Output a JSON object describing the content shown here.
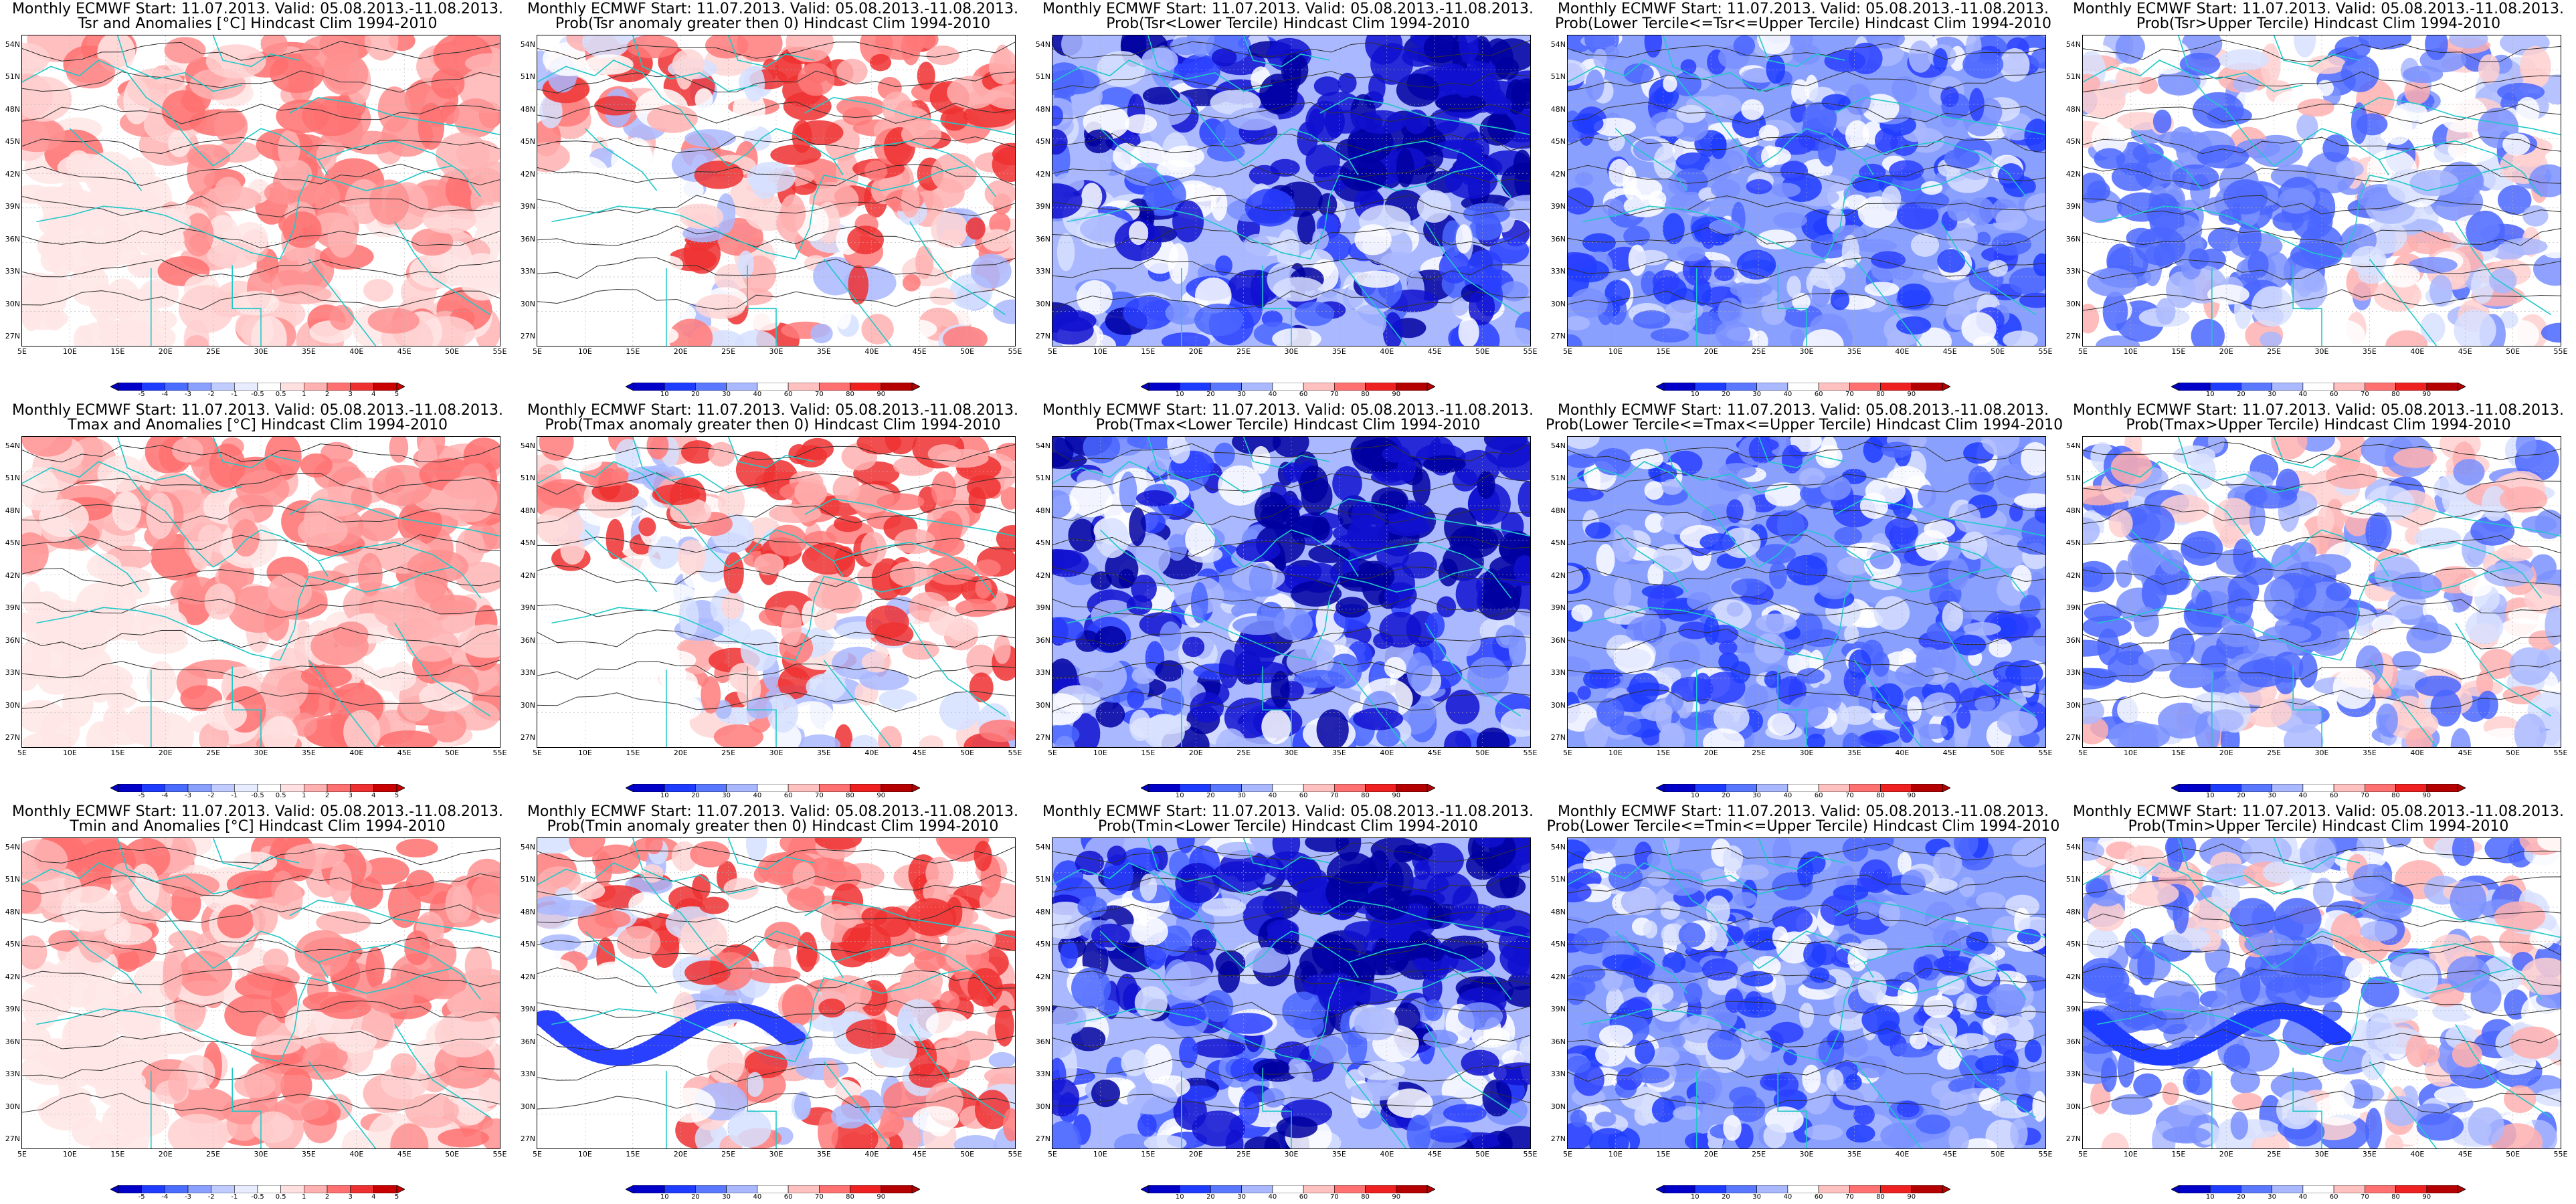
{
  "lat_ticks": [
    "54N",
    "51N",
    "48N",
    "45N",
    "42N",
    "39N",
    "36N",
    "33N",
    "30N",
    "27N"
  ],
  "lon_ticks": [
    "5E",
    "10E",
    "15E",
    "20E",
    "25E",
    "30E",
    "35E",
    "40E",
    "45E",
    "50E",
    "55E"
  ],
  "colorbars": {
    "anom": {
      "labels": [
        "-5",
        "-4",
        "-3",
        "-2",
        "-1",
        "-0.5",
        "0.5",
        "1",
        "2",
        "3",
        "4",
        "5"
      ],
      "colors": [
        "#0000c8",
        "#1e3cff",
        "#4a6cff",
        "#8aa0ff",
        "#c0ccff",
        "#e8ecff",
        "#ffffff",
        "#ffe0e0",
        "#ffb0b0",
        "#ff7070",
        "#ee3030",
        "#c80000"
      ]
    },
    "prob": {
      "labels": [
        "10",
        "20",
        "30",
        "40",
        "60",
        "70",
        "80",
        "90"
      ],
      "colors": [
        "#0000c8",
        "#1e3cff",
        "#5a78ff",
        "#aab8ff",
        "#ffffff",
        "#ffc0c0",
        "#ff7070",
        "#ee2020",
        "#b40000"
      ]
    }
  },
  "panels": [
    {
      "title1": "Monthly ECMWF Start: 11.07.2013. Valid: 05.08.2013.-11.08.2013.",
      "title2": "Tsr and Anomalies [°C] Hindcast Clim 1994-2010",
      "kind": "anom_warm",
      "cbar": "anom"
    },
    {
      "title1": "Monthly ECMWF Start: 11.07.2013. Valid: 05.08.2013.-11.08.2013.",
      "title2": "Prob(Tsr anomaly greater then 0) Hindcast Clim 1994-2010",
      "kind": "prob_warm",
      "cbar": "prob"
    },
    {
      "title1": "Monthly ECMWF Start: 11.07.2013. Valid: 05.08.2013.-11.08.2013.",
      "title2": "Prob(Tsr<Lower Tercile) Hindcast Clim 1994-2010",
      "kind": "prob_blue_strong",
      "cbar": "prob"
    },
    {
      "title1": "Monthly ECMWF Start: 11.07.2013. Valid: 05.08.2013.-11.08.2013.",
      "title2": "Prob(Lower Tercile<=Tsr<=Upper Tercile) Hindcast Clim 1994-2010",
      "kind": "prob_blue_mid",
      "cbar": "prob"
    },
    {
      "title1": "Monthly ECMWF Start: 11.07.2013. Valid: 05.08.2013.-11.08.2013.",
      "title2": "Prob(Tsr>Upper Tercile) Hindcast Clim 1994-2010",
      "kind": "prob_upper",
      "cbar": "prob"
    },
    {
      "title1": "Monthly ECMWF Start: 11.07.2013. Valid: 05.08.2013.-11.08.2013.",
      "title2": "Tmax and Anomalies [°C] Hindcast Clim 1994-2010",
      "kind": "anom_warm",
      "cbar": "anom"
    },
    {
      "title1": "Monthly ECMWF Start: 11.07.2013. Valid: 05.08.2013.-11.08.2013.",
      "title2": "Prob(Tmax anomaly greater then 0) Hindcast Clim 1994-2010",
      "kind": "prob_warm",
      "cbar": "prob"
    },
    {
      "title1": "Monthly ECMWF Start: 11.07.2013. Valid: 05.08.2013.-11.08.2013.",
      "title2": "Prob(Tmax<Lower Tercile) Hindcast Clim 1994-2010",
      "kind": "prob_blue_strong",
      "cbar": "prob"
    },
    {
      "title1": "Monthly ECMWF Start: 11.07.2013. Valid: 05.08.2013.-11.08.2013.",
      "title2": "Prob(Lower Tercile<=Tmax<=Upper Tercile) Hindcast Clim 1994-2010",
      "kind": "prob_blue_mid",
      "cbar": "prob"
    },
    {
      "title1": "Monthly ECMWF Start: 11.07.2013. Valid: 05.08.2013.-11.08.2013.",
      "title2": "Prob(Tmax>Upper Tercile) Hindcast Clim 1994-2010",
      "kind": "prob_upper",
      "cbar": "prob"
    },
    {
      "title1": "Monthly ECMWF Start: 11.07.2013. Valid: 05.08.2013.-11.08.2013.",
      "title2": "Tmin and Anomalies [°C] Hindcast Clim 1994-2010",
      "kind": "anom_warm",
      "cbar": "anom"
    },
    {
      "title1": "Monthly ECMWF Start: 11.07.2013. Valid: 05.08.2013.-11.08.2013.",
      "title2": "Prob(Tmin anomaly greater then 0) Hindcast Clim 1994-2010",
      "kind": "prob_warm_tmin",
      "cbar": "prob"
    },
    {
      "title1": "Monthly ECMWF Start: 11.07.2013. Valid: 05.08.2013.-11.08.2013.",
      "title2": "Prob(Tmin<Lower Tercile) Hindcast Clim 1994-2010",
      "kind": "prob_blue_strong",
      "cbar": "prob"
    },
    {
      "title1": "Monthly ECMWF Start: 11.07.2013. Valid: 05.08.2013.-11.08.2013.",
      "title2": "Prob(Lower Tercile<=Tmin<=Upper Tercile) Hindcast Clim 1994-2010",
      "kind": "prob_blue_mid",
      "cbar": "prob"
    },
    {
      "title1": "Monthly ECMWF Start: 11.07.2013. Valid: 05.08.2013.-11.08.2013.",
      "title2": "Prob(Tmin>Upper Tercile) Hindcast Clim 1994-2010",
      "kind": "prob_upper_tmin",
      "cbar": "prob"
    }
  ]
}
